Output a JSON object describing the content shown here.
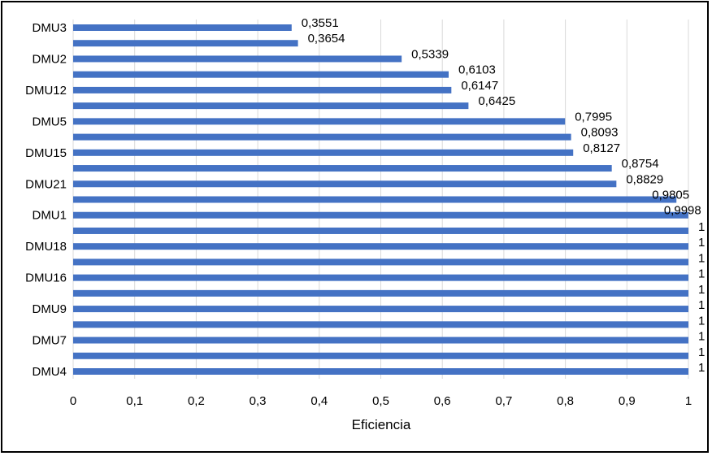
{
  "chart_data": {
    "type": "bar",
    "orientation": "horizontal",
    "title": "",
    "xlabel": "Eficiencia",
    "ylabel": "",
    "xlim": [
      0,
      1
    ],
    "x_ticks": [
      "0",
      "0,1",
      "0,2",
      "0,3",
      "0,4",
      "0,5",
      "0,6",
      "0,7",
      "0,8",
      "0,9",
      "1"
    ],
    "grid": "vertical",
    "bar_color": "#4472C4",
    "categories": [
      "DMU3",
      "",
      "DMU2",
      "",
      "DMU12",
      "",
      "DMU5",
      "",
      "DMU15",
      "",
      "DMU21",
      "",
      "DMU1",
      "",
      "DMU18",
      "",
      "DMU16",
      "",
      "DMU9",
      "",
      "DMU7",
      "",
      "DMU4"
    ],
    "values": [
      0.3551,
      0.3654,
      0.5339,
      0.6103,
      0.6147,
      0.6425,
      0.7995,
      0.8093,
      0.8127,
      0.8754,
      0.8829,
      0.9805,
      0.9998,
      1,
      1,
      1,
      1,
      1,
      1,
      1,
      1,
      1,
      1
    ],
    "value_labels": [
      "0,3551",
      "0,3654",
      "0,5339",
      "0,6103",
      "0,6147",
      "0,6425",
      "0,7995",
      "0,8093",
      "0,8127",
      "0,8754",
      "0,8829",
      "0,9805",
      "0,9998",
      "1",
      "1",
      "1",
      "1",
      "1",
      "1",
      "1",
      "1",
      "1",
      "1"
    ]
  }
}
